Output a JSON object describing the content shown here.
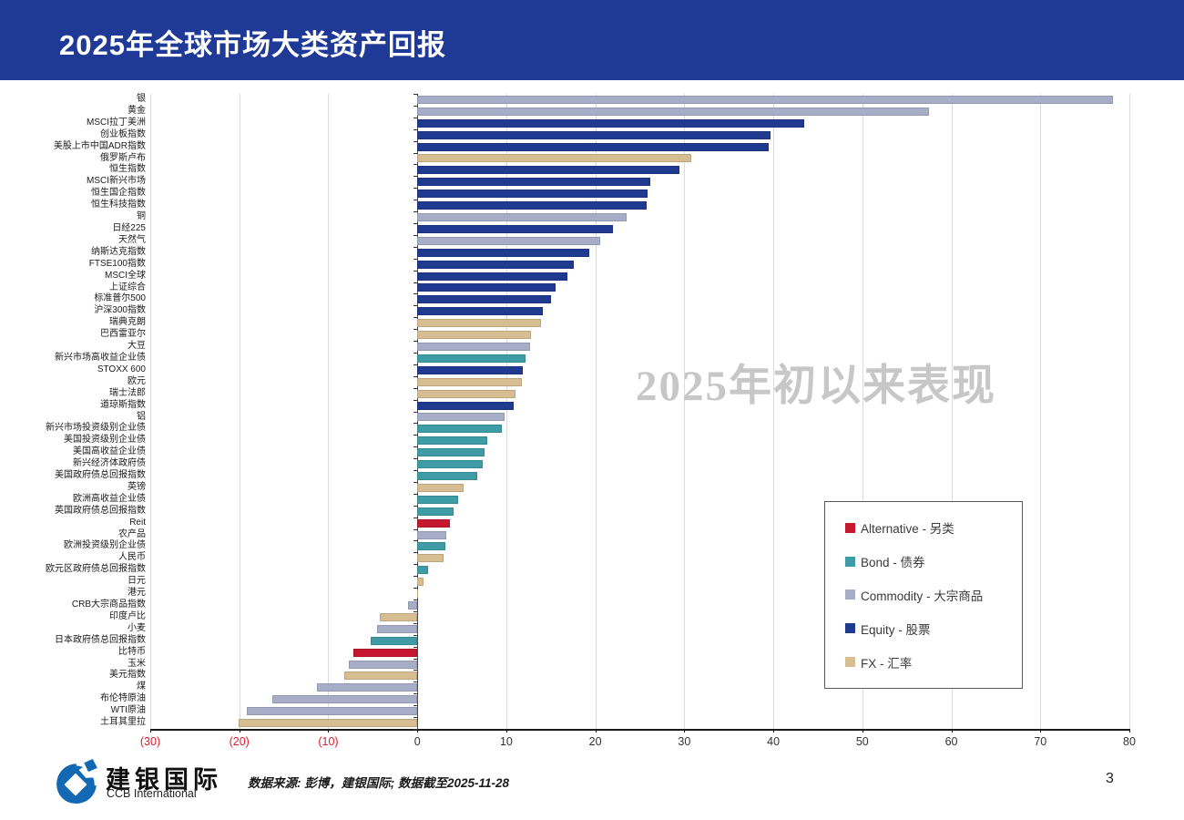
{
  "header": {
    "title": "2025年全球市场大类资产回报",
    "bg_color": "#1E3A96"
  },
  "watermark": "2025年初以来表现",
  "footer": {
    "logo_cn": "建银国际",
    "logo_en": "CCB International",
    "source": "数据来源: 彭博，建银国际; 数据截至2025-11-28",
    "page_number": "3"
  },
  "legend": {
    "position": "center-right",
    "items": [
      {
        "key": "alternative",
        "label": "Alternative - 另类",
        "color": "#C5182F"
      },
      {
        "key": "bond",
        "label": "Bond - 债券",
        "color": "#3F9CA6"
      },
      {
        "key": "commodity",
        "label": "Commodity - 大宗商品",
        "color": "#A7ADC7"
      },
      {
        "key": "equity",
        "label": "Equity - 股票",
        "color": "#203A90"
      },
      {
        "key": "fx",
        "label": "FX - 汇率",
        "color": "#D7BD92"
      }
    ]
  },
  "chart_data": {
    "type": "bar",
    "orientation": "horizontal",
    "title": "2025年全球市场大类资产回报",
    "annotation": "2025年初以来表现",
    "xlim": [
      -30,
      80
    ],
    "x_ticks": [
      -30,
      -20,
      -10,
      0,
      10,
      20,
      30,
      40,
      50,
      60,
      70,
      80
    ],
    "x_tick_labels": [
      "(30)",
      "(20)",
      "(10)",
      "0",
      "10",
      "20",
      "30",
      "40",
      "50",
      "60",
      "70",
      "80"
    ],
    "negative_tick_color": "#E8192C",
    "grid": true,
    "categories": [
      "银",
      "黄金",
      "MSCI拉丁美洲",
      "创业板指数",
      "美股上市中国ADR指数",
      "俄罗斯卢布",
      "恒生指数",
      "MSCI新兴市场",
      "恒生国企指数",
      "恒生科技指数",
      "铜",
      "日经225",
      "天然气",
      "纳斯达克指数",
      "FTSE100指数",
      "MSCI全球",
      "上证综合",
      "标准普尔500",
      "沪深300指数",
      "瑞典克朗",
      "巴西雷亚尔",
      "大豆",
      "新兴市场高收益企业债",
      "STOXX 600",
      "欧元",
      "瑞士法郎",
      "道琼斯指数",
      "铝",
      "新兴市场投资级别企业债",
      "美国投资级别企业债",
      "美国高收益企业债",
      "新兴经济体政府债",
      "美国政府债总回报指数",
      "英镑",
      "欧洲高收益企业债",
      "英国政府债总回报指数",
      "Reit",
      "农产品",
      "欧洲投资级别企业债",
      "人民币",
      "欧元区政府债总回报指数",
      "日元",
      "港元",
      "CRB大宗商品指数",
      "印度卢比",
      "小麦",
      "日本政府债总回报指数",
      "比特币",
      "玉米",
      "美元指数",
      "煤",
      "布伦特原油",
      "WTI原油",
      "土耳其里拉"
    ],
    "values": [
      78.2,
      57.5,
      43.5,
      39.7,
      39.5,
      30.8,
      29.5,
      26.2,
      25.9,
      25.8,
      23.5,
      22.0,
      20.5,
      19.3,
      17.6,
      16.9,
      15.5,
      15.0,
      14.1,
      13.9,
      12.8,
      12.7,
      12.2,
      11.9,
      11.7,
      11.0,
      10.8,
      9.8,
      9.5,
      7.9,
      7.6,
      7.3,
      6.7,
      5.2,
      4.6,
      4.1,
      3.7,
      3.3,
      3.2,
      2.9,
      1.2,
      0.7,
      0.1,
      -1.0,
      -4.2,
      -4.5,
      -5.2,
      -7.2,
      -7.7,
      -8.2,
      -11.3,
      -16.3,
      -19.2,
      -20.1
    ],
    "classes": [
      "commodity",
      "commodity",
      "equity",
      "equity",
      "equity",
      "fx",
      "equity",
      "equity",
      "equity",
      "equity",
      "commodity",
      "equity",
      "commodity",
      "equity",
      "equity",
      "equity",
      "equity",
      "equity",
      "equity",
      "fx",
      "fx",
      "commodity",
      "bond",
      "equity",
      "fx",
      "fx",
      "equity",
      "commodity",
      "bond",
      "bond",
      "bond",
      "bond",
      "bond",
      "fx",
      "bond",
      "bond",
      "alternative",
      "commodity",
      "bond",
      "fx",
      "bond",
      "fx",
      "fx",
      "commodity",
      "fx",
      "commodity",
      "bond",
      "alternative",
      "commodity",
      "fx",
      "commodity",
      "commodity",
      "commodity",
      "fx"
    ]
  }
}
